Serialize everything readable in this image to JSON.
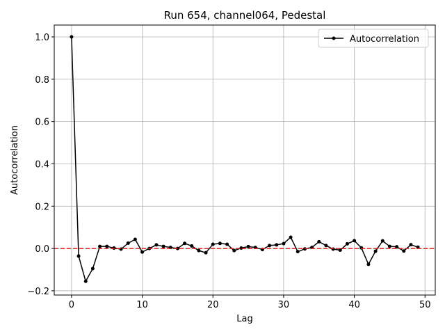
{
  "chart_data": {
    "type": "line",
    "title": "Run 654, channel064, Pedestal",
    "xlabel": "Lag",
    "ylabel": "Autocorrelation",
    "x": [
      0,
      1,
      2,
      3,
      4,
      5,
      6,
      7,
      8,
      9,
      10,
      11,
      12,
      13,
      14,
      15,
      16,
      17,
      18,
      19,
      20,
      21,
      22,
      23,
      24,
      25,
      26,
      27,
      28,
      29,
      30,
      31,
      32,
      33,
      34,
      35,
      36,
      37,
      38,
      39,
      40,
      41,
      42,
      43,
      44,
      45,
      46,
      47,
      48,
      49
    ],
    "series": [
      {
        "name": "Autocorrelation",
        "color": "#000000",
        "values": [
          1.0,
          -0.036,
          -0.155,
          -0.095,
          0.01,
          0.01,
          0.002,
          -0.003,
          0.025,
          0.043,
          -0.017,
          0.0,
          0.017,
          0.01,
          0.005,
          0.0,
          0.024,
          0.012,
          -0.01,
          -0.02,
          0.02,
          0.024,
          0.02,
          -0.01,
          0.002,
          0.009,
          0.005,
          -0.005,
          0.014,
          0.017,
          0.023,
          0.053,
          -0.015,
          -0.002,
          0.005,
          0.032,
          0.014,
          -0.003,
          -0.008,
          0.022,
          0.037,
          0.003,
          -0.075,
          -0.013,
          0.036,
          0.01,
          0.008,
          -0.012,
          0.018,
          0.006
        ]
      }
    ],
    "hline": {
      "y": 0,
      "color": "#e41a1c"
    },
    "xlim": [
      -2.45,
      51.45
    ],
    "ylim": [
      -0.22,
      1.056
    ],
    "xticks": [
      0,
      10,
      20,
      30,
      40,
      50
    ],
    "yticks": [
      {
        "value": -0.2,
        "label": "−0.2"
      },
      {
        "value": 0,
        "label": "0.0"
      },
      {
        "value": 0.2,
        "label": "0.2"
      },
      {
        "value": 0.4,
        "label": "0.4"
      },
      {
        "value": 0.6,
        "label": "0.6"
      },
      {
        "value": 0.8,
        "label": "0.8"
      },
      {
        "value": 1.0,
        "label": "1.0"
      }
    ],
    "grid": true,
    "legend": "upper right"
  }
}
